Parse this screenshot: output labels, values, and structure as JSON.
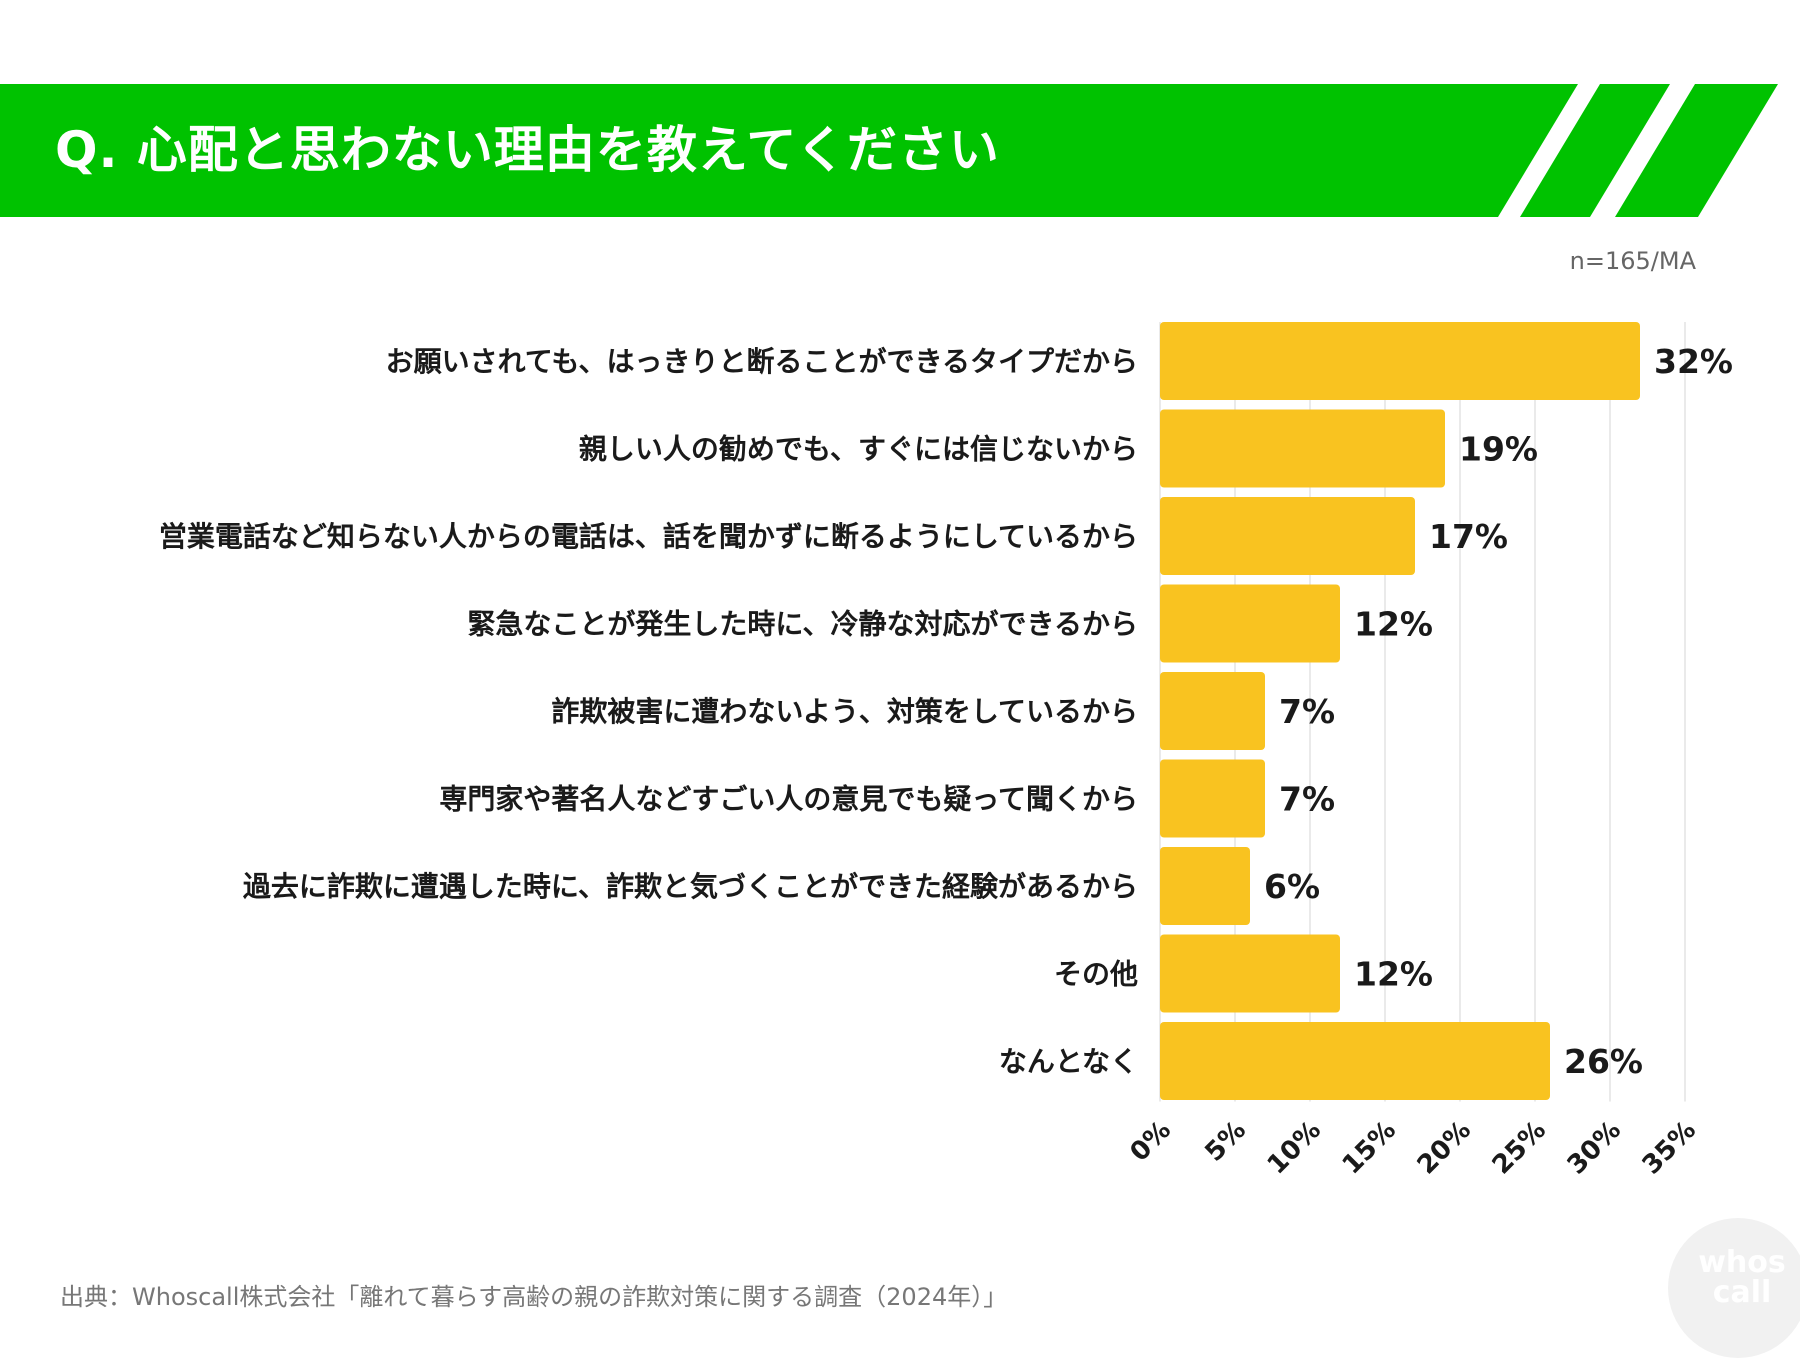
{
  "header": {
    "title": "Q. 心配と思わない理由を教えてください"
  },
  "sample_note": "n=165/MA",
  "source": "出典：Whoscall株式会社「離れて暮らす高齢の親の詐欺対策に関する調査（2024年）」",
  "logo_text": "whos call",
  "colors": {
    "banner": "#00c200",
    "bar": "#f9c320",
    "grid": "#e3e3e3"
  },
  "chart_data": {
    "type": "bar",
    "orientation": "horizontal",
    "title": "Q. 心配と思わない理由を教えてください",
    "categories": [
      "お願いされても、はっきりと断ることができるタイプだから",
      "親しい人の勧めでも、すぐには信じないから",
      "営業電話など知らない人からの電話は、話を聞かずに断るようにしているから",
      "緊急なことが発生した時に、冷静な対応ができるから",
      "詐欺被害に遭わないよう、対策をしているから",
      "専門家や著名人などすごい人の意見でも疑って聞くから",
      "過去に詐欺に遭遇した時に、詐欺と気づくことができた経験があるから",
      "その他",
      "なんとなく"
    ],
    "values": [
      32,
      19,
      17,
      12,
      7,
      7,
      6,
      12,
      26
    ],
    "data_labels": [
      "32%",
      "19%",
      "17%",
      "12%",
      "7%",
      "7%",
      "6%",
      "12%",
      "26%"
    ],
    "xlim": [
      0,
      35
    ],
    "x_ticks": [
      "0%",
      "5%",
      "10%",
      "15%",
      "20%",
      "25%",
      "30%",
      "35%"
    ],
    "grid": true,
    "xlabel": "",
    "ylabel": ""
  }
}
